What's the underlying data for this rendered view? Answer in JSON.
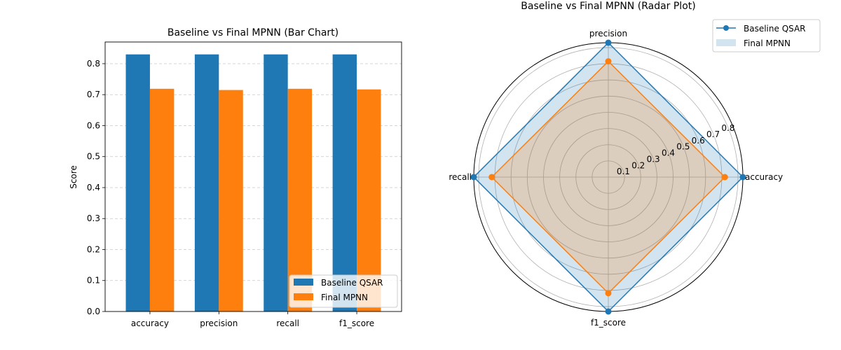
{
  "colors": {
    "baseline": "#1f77b4",
    "final": "#ff7f0e"
  },
  "chart_data": [
    {
      "type": "bar",
      "title": "Baseline vs Final MPNN (Bar Chart)",
      "xlabel": "",
      "ylabel": "Score",
      "ylim": [
        0,
        0.87
      ],
      "yticks": [
        0.0,
        0.1,
        0.2,
        0.3,
        0.4,
        0.5,
        0.6,
        0.7,
        0.8
      ],
      "ytick_labels": [
        "0.0",
        "0.1",
        "0.2",
        "0.3",
        "0.4",
        "0.5",
        "0.6",
        "0.7",
        "0.8"
      ],
      "grid": "y-dashed",
      "legend_position": "lower-right",
      "categories": [
        "accuracy",
        "precision",
        "recall",
        "f1_score"
      ],
      "series": [
        {
          "name": "Baseline QSAR",
          "values": [
            0.83,
            0.83,
            0.83,
            0.83
          ]
        },
        {
          "name": "Final MPNN",
          "values": [
            0.719,
            0.715,
            0.719,
            0.717
          ]
        }
      ]
    },
    {
      "type": "radar",
      "title": "Baseline vs Final MPNN (Radar Plot)",
      "axes": [
        "accuracy",
        "precision",
        "recall",
        "f1_score"
      ],
      "rmax": 0.83,
      "rticks": [
        0.1,
        0.2,
        0.3,
        0.4,
        0.5,
        0.6,
        0.7,
        0.8
      ],
      "rtick_labels": [
        "0.1",
        "0.2",
        "0.3",
        "0.4",
        "0.5",
        "0.6",
        "0.7",
        "0.8"
      ],
      "legend_position": "upper-right",
      "series": [
        {
          "name": "Baseline QSAR",
          "values": [
            0.83,
            0.83,
            0.83,
            0.83
          ]
        },
        {
          "name": "Final MPNN",
          "values": [
            0.719,
            0.715,
            0.719,
            0.717
          ]
        }
      ]
    }
  ]
}
